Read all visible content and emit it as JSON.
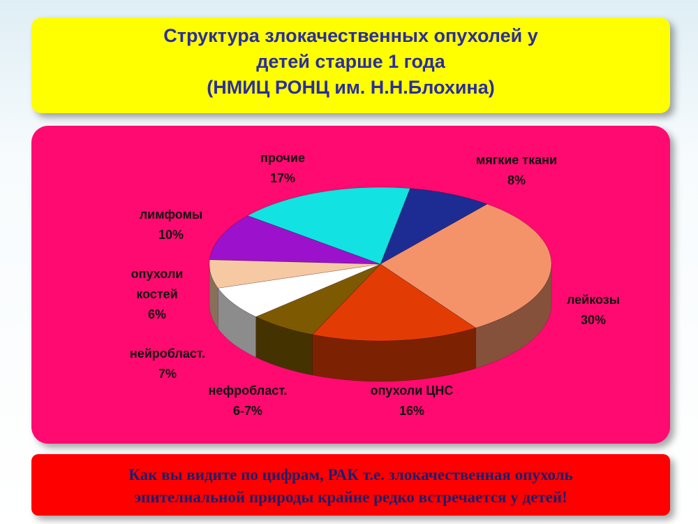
{
  "chart_data": {
    "type": "pie3d",
    "title": "Структура злокачественных  опухолей у\nдетей старше 1 года\n(НМИЦ РОНЦ им. Н.Н.Блохина)",
    "categories": [
      "мягкие ткани",
      "лейкозы",
      "опухоли ЦНС",
      "нефробласт.",
      "нейробласт.",
      "опухоли костей",
      "лимфомы",
      "прочие"
    ],
    "values": [
      8,
      30,
      16,
      6.5,
      7,
      6,
      10,
      17
    ],
    "value_labels": [
      "8%",
      "30%",
      "16%",
      "6-7%",
      "7%",
      "6%",
      "10%",
      "17%"
    ],
    "colors": [
      "#1c2c92",
      "#f4936a",
      "#e23c04",
      "#7d5a02",
      "#ffffff",
      "#f7c9a2",
      "#9c12cc",
      "#12e2e2"
    ],
    "note": "Как вы видите по цифрам, РАК т.е. злокачественная опухоль\nэпителиальной природы крайне редко встречается у детей!"
  }
}
